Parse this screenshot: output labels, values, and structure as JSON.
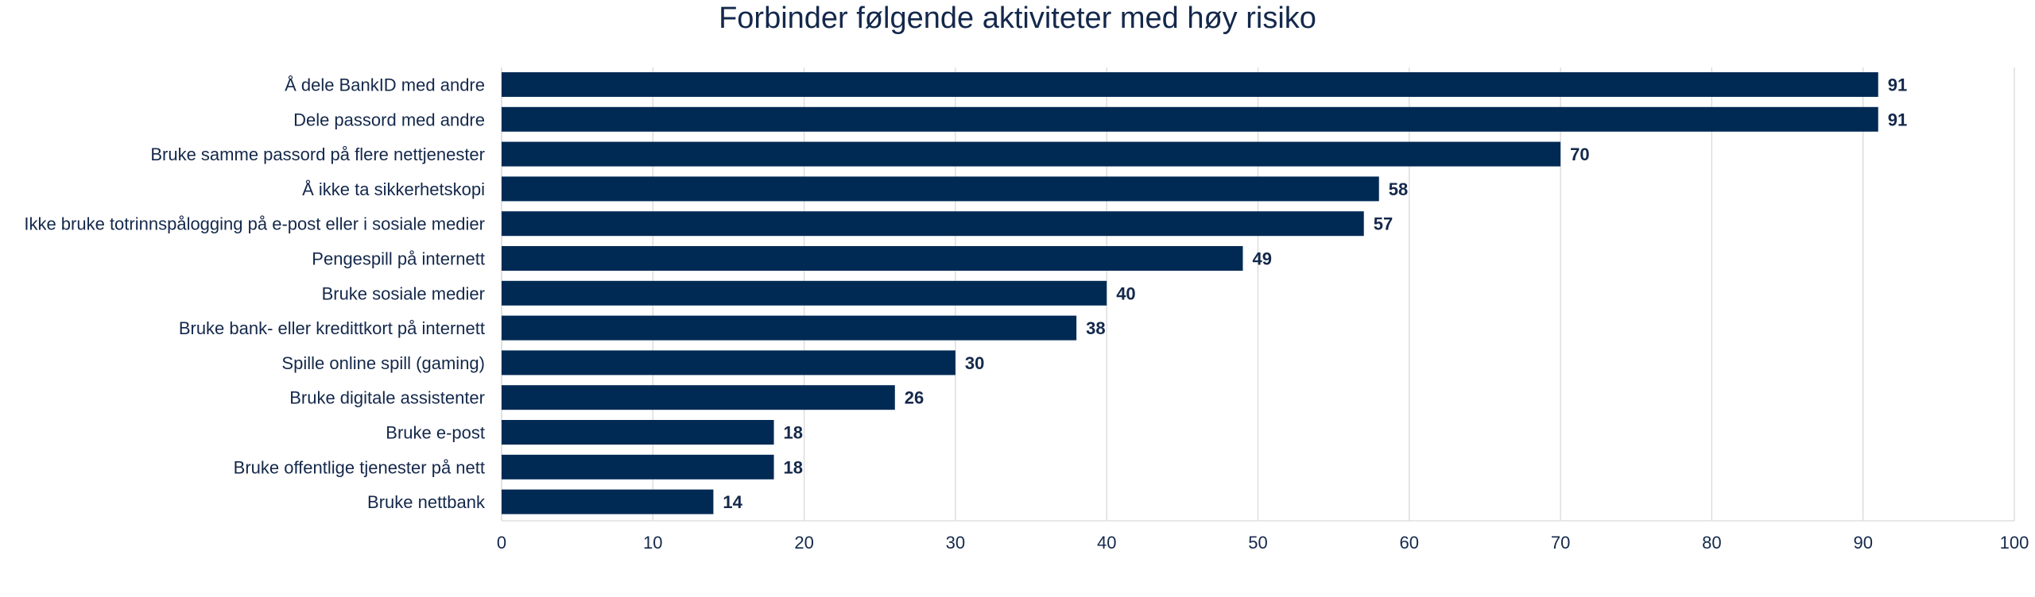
{
  "chart_data": {
    "type": "bar",
    "orientation": "horizontal",
    "title": "Forbinder følgende aktiviteter med høy risiko",
    "xlabel": "",
    "ylabel": "",
    "categories": [
      "Å dele BankID med andre",
      "Dele passord med andre",
      "Bruke samme passord på flere nettjenester",
      "Å ikke ta sikkerhetskopi",
      "Ikke bruke totrinnspålogging på e-post eller i sosiale medier",
      "Pengespill på internett",
      "Bruke sosiale medier",
      "Bruke bank- eller kredittkort på internett",
      "Spille online spill (gaming)",
      "Bruke digitale assistenter",
      "Bruke e-post",
      "Bruke offentlige tjenester på nett",
      "Bruke nettbank"
    ],
    "values": [
      91,
      91,
      70,
      58,
      57,
      49,
      40,
      38,
      30,
      26,
      18,
      18,
      14
    ],
    "xlim": [
      0,
      100
    ],
    "xticks": [
      0,
      10,
      20,
      30,
      40,
      50,
      60,
      70,
      80,
      90,
      100
    ],
    "grid": "vertical",
    "legend": "none",
    "colors": {
      "bar": "#002a54",
      "text": "#14284b",
      "grid": "#d9d9d9"
    }
  }
}
